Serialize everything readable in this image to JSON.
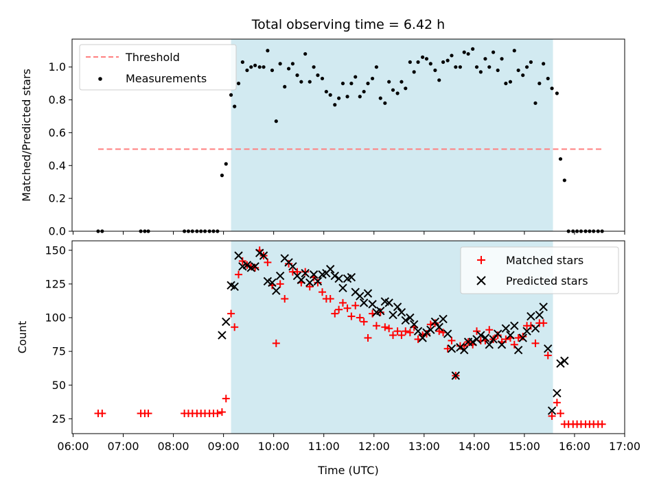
{
  "chart_data": [
    {
      "type": "scatter",
      "title": "Total observing time = 6.42 h",
      "xlabel": "",
      "ylabel": "Matched/Predicted stars",
      "x_unit": "hours UTC",
      "xlim": [
        5.98,
        17.0
      ],
      "ylim": [
        0.0,
        1.17
      ],
      "yticks": [
        0.0,
        0.2,
        0.4,
        0.6,
        0.8,
        1.0
      ],
      "ytick_labels": [
        "0.0",
        "0.2",
        "0.4",
        "0.6",
        "0.8",
        "1.0"
      ],
      "shaded_span": [
        9.15,
        15.57
      ],
      "shade_color": "#add8e6",
      "legend_position": "upper left",
      "series": [
        {
          "name": "Threshold",
          "style": "dashed-line",
          "color": "#ff7f7f",
          "x": [
            6.5,
            16.57
          ],
          "y": [
            0.5,
            0.5
          ]
        },
        {
          "name": "Measurements",
          "style": "dot",
          "color": "#000000",
          "x": [
            6.5,
            6.58,
            7.35,
            7.43,
            7.5,
            8.22,
            8.3,
            8.38,
            8.47,
            8.55,
            8.63,
            8.72,
            8.8,
            8.88,
            8.97,
            9.05,
            9.15,
            9.22,
            9.3,
            9.38,
            9.47,
            9.55,
            9.63,
            9.72,
            9.8,
            9.88,
            9.97,
            10.05,
            10.13,
            10.22,
            10.3,
            10.38,
            10.47,
            10.55,
            10.63,
            10.72,
            10.8,
            10.88,
            10.97,
            11.05,
            11.13,
            11.22,
            11.3,
            11.38,
            11.47,
            11.55,
            11.63,
            11.72,
            11.8,
            11.88,
            11.97,
            12.05,
            12.13,
            12.22,
            12.3,
            12.38,
            12.47,
            12.55,
            12.63,
            12.72,
            12.8,
            12.88,
            12.97,
            13.05,
            13.13,
            13.22,
            13.3,
            13.38,
            13.47,
            13.55,
            13.63,
            13.72,
            13.8,
            13.88,
            13.97,
            14.05,
            14.13,
            14.22,
            14.3,
            14.38,
            14.47,
            14.55,
            14.63,
            14.72,
            14.8,
            14.88,
            14.97,
            15.05,
            15.13,
            15.22,
            15.3,
            15.38,
            15.47,
            15.55,
            15.65,
            15.72,
            15.8,
            15.88,
            15.97,
            16.05,
            16.13,
            16.22,
            16.3,
            16.38,
            16.47,
            16.55
          ],
          "y": [
            0.0,
            0.0,
            0.0,
            0.0,
            0.0,
            0.0,
            0.0,
            0.0,
            0.0,
            0.0,
            0.0,
            0.0,
            0.0,
            0.0,
            0.34,
            0.41,
            0.83,
            0.76,
            0.9,
            1.03,
            0.98,
            1.0,
            1.01,
            1.0,
            1.0,
            1.1,
            0.98,
            0.67,
            1.02,
            0.88,
            0.99,
            1.02,
            0.95,
            0.91,
            1.08,
            0.91,
            1.0,
            0.95,
            0.93,
            0.85,
            0.83,
            0.77,
            0.81,
            0.9,
            0.82,
            0.9,
            0.94,
            0.82,
            0.85,
            0.9,
            0.93,
            1.0,
            0.81,
            0.78,
            0.91,
            0.86,
            0.84,
            0.91,
            0.87,
            1.03,
            0.97,
            1.03,
            1.06,
            1.05,
            1.02,
            0.98,
            0.92,
            1.03,
            1.04,
            1.07,
            1.0,
            1.0,
            1.09,
            1.08,
            1.11,
            1.0,
            0.97,
            1.05,
            1.0,
            1.09,
            0.98,
            1.05,
            0.9,
            0.91,
            1.1,
            0.98,
            0.95,
            1.0,
            1.03,
            0.78,
            0.9,
            1.02,
            0.93,
            0.87,
            0.84,
            0.44,
            0.31,
            0.0,
            0.0,
            0.0,
            0.0,
            0.0,
            0.0,
            0.0,
            0.0,
            0.0
          ]
        }
      ]
    },
    {
      "type": "scatter",
      "title": "",
      "xlabel": "Time (UTC)",
      "ylabel": "Count",
      "x_unit": "hours UTC",
      "xlim": [
        5.98,
        17.0
      ],
      "ylim": [
        14,
        157
      ],
      "xticks": [
        6,
        7,
        8,
        9,
        10,
        11,
        12,
        13,
        14,
        15,
        16,
        17
      ],
      "xtick_labels": [
        "06:00",
        "07:00",
        "08:00",
        "09:00",
        "10:00",
        "11:00",
        "12:00",
        "13:00",
        "14:00",
        "15:00",
        "16:00",
        "17:00"
      ],
      "yticks": [
        25,
        50,
        75,
        100,
        125,
        150
      ],
      "ytick_labels": [
        "25",
        "50",
        "75",
        "100",
        "125",
        "150"
      ],
      "shaded_span": [
        9.15,
        15.57
      ],
      "shade_color": "#add8e6",
      "legend_position": "upper right",
      "series": [
        {
          "name": "Matched stars",
          "marker": "plus",
          "color": "#ff0000",
          "x": [
            6.5,
            6.58,
            7.35,
            7.43,
            7.5,
            8.22,
            8.3,
            8.38,
            8.47,
            8.55,
            8.63,
            8.72,
            8.8,
            8.88,
            8.97,
            9.05,
            9.15,
            9.22,
            9.3,
            9.38,
            9.47,
            9.55,
            9.63,
            9.72,
            9.8,
            9.88,
            9.97,
            10.05,
            10.13,
            10.22,
            10.3,
            10.38,
            10.47,
            10.55,
            10.63,
            10.72,
            10.8,
            10.88,
            10.97,
            11.05,
            11.13,
            11.22,
            11.3,
            11.38,
            11.47,
            11.55,
            11.63,
            11.72,
            11.8,
            11.88,
            11.97,
            12.05,
            12.13,
            12.22,
            12.3,
            12.38,
            12.47,
            12.55,
            12.63,
            12.72,
            12.8,
            12.88,
            12.97,
            13.05,
            13.13,
            13.22,
            13.3,
            13.38,
            13.47,
            13.55,
            13.63,
            13.72,
            13.8,
            13.88,
            13.97,
            14.05,
            14.13,
            14.22,
            14.3,
            14.38,
            14.47,
            14.55,
            14.63,
            14.72,
            14.8,
            14.88,
            14.97,
            15.05,
            15.13,
            15.22,
            15.3,
            15.38,
            15.47,
            15.55,
            15.65,
            15.72,
            15.8,
            15.88,
            15.97,
            16.05,
            16.13,
            16.22,
            16.3,
            16.38,
            16.47,
            16.55
          ],
          "y": [
            29,
            29,
            29,
            29,
            29,
            29,
            29,
            29,
            29,
            29,
            29,
            29,
            29,
            29,
            30,
            40,
            103,
            93,
            132,
            142,
            139,
            138,
            137,
            150,
            146,
            141,
            124,
            81,
            125,
            114,
            140,
            134,
            134,
            126,
            134,
            123,
            130,
            126,
            119,
            114,
            114,
            103,
            106,
            111,
            107,
            101,
            109,
            100,
            97,
            85,
            103,
            94,
            104,
            93,
            92,
            87,
            90,
            87,
            90,
            89,
            93,
            84,
            87,
            88,
            95,
            96,
            90,
            89,
            77,
            83,
            57,
            79,
            79,
            82,
            80,
            90,
            83,
            83,
            91,
            84,
            87,
            82,
            84,
            85,
            80,
            85,
            86,
            94,
            94,
            81,
            96,
            96,
            72,
            27,
            37,
            29,
            21,
            21,
            21,
            21,
            21,
            21,
            21,
            21,
            21,
            21
          ]
        },
        {
          "name": "Predicted stars",
          "marker": "x",
          "color": "#000000",
          "x": [
            8.97,
            9.05,
            9.15,
            9.22,
            9.3,
            9.38,
            9.47,
            9.55,
            9.63,
            9.72,
            9.8,
            9.88,
            9.97,
            10.05,
            10.13,
            10.22,
            10.3,
            10.38,
            10.47,
            10.55,
            10.63,
            10.72,
            10.8,
            10.88,
            10.97,
            11.05,
            11.13,
            11.22,
            11.3,
            11.38,
            11.47,
            11.55,
            11.63,
            11.72,
            11.8,
            11.88,
            11.97,
            12.05,
            12.13,
            12.22,
            12.3,
            12.38,
            12.47,
            12.55,
            12.63,
            12.72,
            12.8,
            12.88,
            12.97,
            13.05,
            13.13,
            13.22,
            13.3,
            13.38,
            13.47,
            13.55,
            13.63,
            13.72,
            13.8,
            13.88,
            13.97,
            14.05,
            14.13,
            14.22,
            14.3,
            14.38,
            14.47,
            14.55,
            14.63,
            14.72,
            14.8,
            14.88,
            14.97,
            15.05,
            15.13,
            15.22,
            15.3,
            15.38,
            15.47,
            15.55,
            15.65,
            15.72,
            15.8
          ],
          "y": [
            87,
            97,
            124,
            123,
            146,
            138,
            139,
            137,
            138,
            148,
            146,
            127,
            126,
            120,
            131,
            144,
            141,
            138,
            131,
            128,
            133,
            126,
            132,
            127,
            132,
            133,
            136,
            131,
            129,
            122,
            129,
            130,
            119,
            116,
            111,
            118,
            110,
            104,
            105,
            112,
            111,
            102,
            108,
            104,
            98,
            100,
            95,
            90,
            85,
            89,
            91,
            97,
            93,
            99,
            88,
            77,
            57,
            78,
            76,
            82,
            82,
            84,
            87,
            85,
            80,
            84,
            88,
            80,
            92,
            87,
            94,
            76,
            85,
            90,
            101,
            92,
            102,
            108,
            77,
            31,
            44,
            66,
            68
          ]
        }
      ]
    }
  ]
}
